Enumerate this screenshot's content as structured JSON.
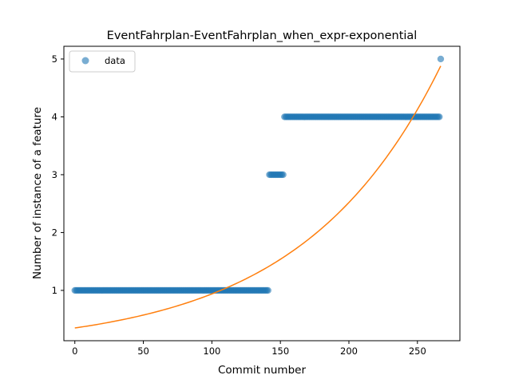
{
  "chart_data": {
    "type": "scatter",
    "title": "EventFahrplan-EventFahrplan_when_expr-exponential",
    "xlabel": "Commit number",
    "ylabel": "Number of instance of a feature",
    "xlim": [
      -8,
      281
    ],
    "ylim": [
      0.13,
      5.22
    ],
    "xticks": [
      0,
      50,
      100,
      150,
      200,
      250
    ],
    "yticks": [
      1,
      2,
      3,
      4,
      5
    ],
    "legend": {
      "placement": "top-left",
      "entries": [
        "data"
      ]
    },
    "colors": {
      "data": "#1f77b4",
      "fit": "#ff7f0e"
    },
    "series": [
      {
        "name": "data",
        "kind": "points",
        "segments": [
          {
            "x_start": 0,
            "x_end": 141,
            "y": 1
          },
          {
            "x_start": 142,
            "x_end": 152,
            "y": 3
          },
          {
            "x_start": 153,
            "x_end": 266,
            "y": 4
          },
          {
            "x_start": 267,
            "x_end": 267,
            "y": 5
          }
        ]
      },
      {
        "kind": "line",
        "model": "exponential",
        "x_range": [
          0,
          267
        ],
        "y_start": 0.35,
        "y_end": 4.88
      }
    ]
  }
}
